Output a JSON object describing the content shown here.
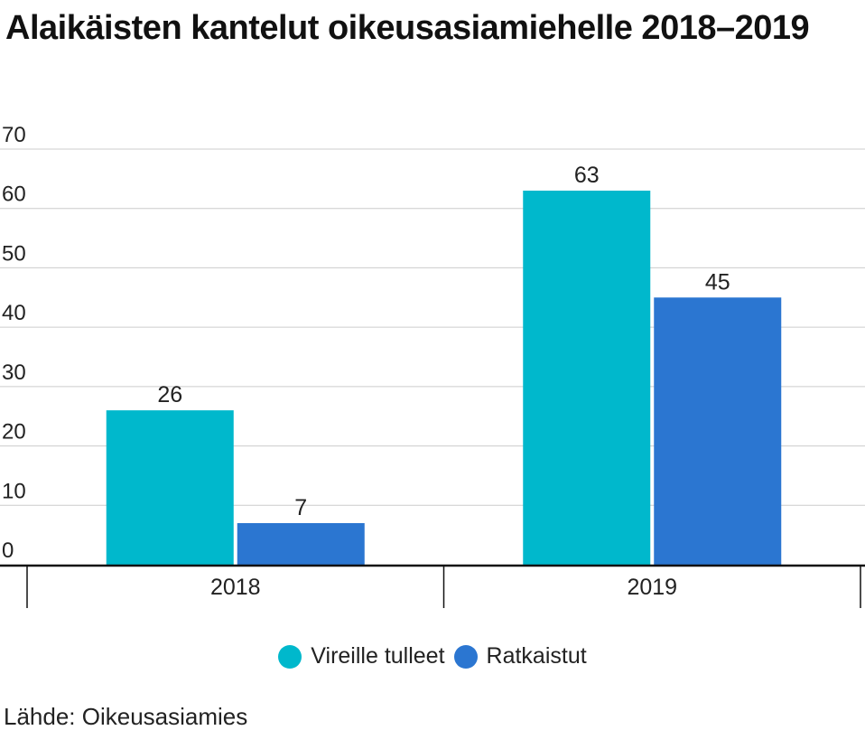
{
  "chart_data": {
    "type": "bar",
    "title": "Alaikäisten kantelut oikeusasiamiehelle 2018–2019",
    "categories": [
      "2018",
      "2019"
    ],
    "series": [
      {
        "name": "Vireille tulleet",
        "values": [
          26,
          63
        ],
        "color": "#00B8CC"
      },
      {
        "name": "Ratkaistut",
        "values": [
          7,
          45
        ],
        "color": "#2B76D1"
      }
    ],
    "ylim": [
      0,
      70
    ],
    "yticks": [
      0,
      10,
      20,
      30,
      40,
      50,
      60,
      70
    ],
    "grid": true,
    "legend_placement": "bottom",
    "source": "Lähde: Oikeusasiamies"
  }
}
